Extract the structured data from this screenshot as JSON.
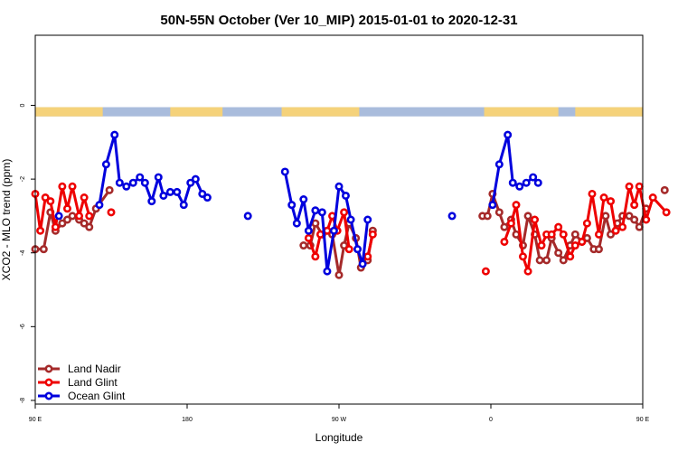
{
  "chart_data": {
    "type": "line",
    "title": "50N-55N October (Ver 10_MIP)   2015-01-01 to 2020-12-31",
    "xlabel": "Longitude",
    "ylabel": "XCO2 - MLO trend (ppm)",
    "xlim": [
      90,
      450
    ],
    "ylim": [
      -8.1,
      1.9
    ],
    "x_ticks": [
      {
        "value": 90,
        "label": "90 E"
      },
      {
        "value": 180,
        "label": "180"
      },
      {
        "value": 270,
        "label": "90 W"
      },
      {
        "value": 360,
        "label": "0"
      },
      {
        "value": 450,
        "label": "90 E"
      },
      {
        "value": 540,
        "label": "180"
      }
    ],
    "y_ticks": [
      {
        "value": 0,
        "label": "0"
      },
      {
        "value": -2,
        "label": "-2"
      },
      {
        "value": -4,
        "label": "-4"
      },
      {
        "value": -6,
        "label": "-6"
      },
      {
        "value": -8,
        "label": "-8"
      }
    ],
    "grid": false,
    "legend_position": "bottom-left",
    "land_ocean_band": {
      "y_top": -0.05,
      "y_bottom": -0.3,
      "land_color": "#f5d27a",
      "ocean_color": "#a9bcdc"
    },
    "series": [
      {
        "name": "Land Nadir",
        "color": "#a52a2a",
        "points": [
          [
            90,
            -3.9
          ],
          [
            95,
            -3.9
          ],
          [
            99,
            -2.9
          ],
          [
            102,
            -3.4
          ],
          [
            106,
            -3.2
          ],
          [
            109,
            -3.1
          ],
          [
            112,
            -3
          ],
          [
            116,
            -3.1
          ],
          [
            119,
            -3.2
          ],
          [
            122,
            -3.3
          ],
          [
            126,
            -2.8
          ],
          [
            134,
            -2.3
          ],
          [
            249,
            -3.8
          ],
          [
            253,
            -3.8
          ],
          [
            256,
            -3.2
          ],
          [
            260,
            -3.5
          ],
          [
            263,
            -3.4
          ],
          [
            266,
            -3.5
          ],
          [
            270,
            -4.6
          ],
          [
            273,
            -3.8
          ],
          [
            276,
            -3.2
          ],
          [
            280,
            -3.6
          ],
          [
            283,
            -4.4
          ],
          [
            287,
            -4.2
          ],
          [
            290,
            -3.4
          ],
          [
            355,
            -3
          ],
          [
            358,
            -3
          ],
          [
            361,
            -2.4
          ],
          [
            365,
            -2.9
          ],
          [
            368,
            -3.3
          ],
          [
            372,
            -3.1
          ],
          [
            375,
            -3.5
          ],
          [
            379,
            -3.8
          ],
          [
            382,
            -3
          ],
          [
            386,
            -3.5
          ],
          [
            389,
            -4.2
          ],
          [
            393,
            -4.2
          ],
          [
            396,
            -3.6
          ],
          [
            400,
            -4
          ],
          [
            403,
            -4.2
          ],
          [
            407,
            -3.8
          ],
          [
            410,
            -3.5
          ],
          [
            414,
            -3.7
          ],
          [
            417,
            -3.6
          ],
          [
            421,
            -3.9
          ],
          [
            424,
            -3.9
          ],
          [
            428,
            -3
          ],
          [
            431,
            -3.5
          ],
          [
            435,
            -3.2
          ],
          [
            438,
            -3
          ],
          [
            442,
            -3
          ],
          [
            445,
            -3.1
          ],
          [
            448,
            -3.3
          ],
          [
            452,
            -2.8
          ],
          [
            463,
            -2.3
          ]
        ]
      },
      {
        "name": "Land Glint",
        "color": "#ee0000",
        "points": [
          [
            90,
            -2.4
          ],
          [
            93,
            -3.4
          ],
          [
            96,
            -2.5
          ],
          [
            99,
            -2.6
          ],
          [
            102,
            -3.3
          ],
          [
            106,
            -2.2
          ],
          [
            109,
            -2.8
          ],
          [
            112,
            -2.2
          ],
          [
            116,
            -3
          ],
          [
            119,
            -2.5
          ],
          [
            122,
            -3
          ],
          [
            135,
            -2.9
          ],
          [
            252,
            -3.6
          ],
          [
            256,
            -4.1
          ],
          [
            259,
            -3.5
          ],
          [
            263,
            -3.4
          ],
          [
            266,
            -3
          ],
          [
            269,
            -3.4
          ],
          [
            273,
            -2.9
          ],
          [
            276,
            -3.9
          ],
          [
            287,
            -4.1
          ],
          [
            290,
            -3.5
          ],
          [
            357,
            -4.5
          ],
          [
            368,
            -3.7
          ],
          [
            372,
            -3.2
          ],
          [
            375,
            -2.7
          ],
          [
            379,
            -4.1
          ],
          [
            382,
            -4.5
          ],
          [
            386,
            -3.1
          ],
          [
            390,
            -3.8
          ],
          [
            393,
            -3.5
          ],
          [
            396,
            -3.5
          ],
          [
            400,
            -3.3
          ],
          [
            403,
            -3.5
          ],
          [
            407,
            -4.1
          ],
          [
            410,
            -3.8
          ],
          [
            414,
            -3.7
          ],
          [
            417,
            -3.2
          ],
          [
            420,
            -2.4
          ],
          [
            424,
            -3.5
          ],
          [
            427,
            -2.5
          ],
          [
            431,
            -2.6
          ],
          [
            434,
            -3.4
          ],
          [
            438,
            -3.3
          ],
          [
            442,
            -2.2
          ],
          [
            445,
            -2.7
          ],
          [
            448,
            -2.2
          ],
          [
            452,
            -3.1
          ],
          [
            456,
            -2.5
          ],
          [
            464,
            -2.9
          ]
        ]
      },
      {
        "name": "Ocean Glint",
        "color": "#0000dd",
        "points": [
          [
            104,
            -3
          ],
          [
            128,
            -2.7
          ],
          [
            132,
            -1.6
          ],
          [
            137,
            -0.8
          ],
          [
            140,
            -2.1
          ],
          [
            144,
            -2.2
          ],
          [
            148,
            -2.1
          ],
          [
            152,
            -1.95
          ],
          [
            155,
            -2.1
          ],
          [
            159,
            -2.6
          ],
          [
            163,
            -1.95
          ],
          [
            166,
            -2.45
          ],
          [
            170,
            -2.35
          ],
          [
            174,
            -2.35
          ],
          [
            178,
            -2.7
          ],
          [
            182,
            -2.1
          ],
          [
            185,
            -2
          ],
          [
            189,
            -2.4
          ],
          [
            192,
            -2.5
          ],
          [
            216,
            -3
          ],
          [
            238,
            -1.8
          ],
          [
            242,
            -2.7
          ],
          [
            245,
            -3.2
          ],
          [
            249,
            -2.55
          ],
          [
            252,
            -3.4
          ],
          [
            256,
            -2.85
          ],
          [
            260,
            -2.9
          ],
          [
            263,
            -4.5
          ],
          [
            267,
            -3.4
          ],
          [
            270,
            -2.2
          ],
          [
            274,
            -2.45
          ],
          [
            277,
            -3.1
          ],
          [
            281,
            -3.9
          ],
          [
            284,
            -4.3
          ],
          [
            287,
            -3.1
          ],
          [
            337,
            -3
          ],
          [
            361,
            -2.7
          ],
          [
            365,
            -1.6
          ],
          [
            370,
            -0.8
          ],
          [
            373,
            -2.1
          ],
          [
            377,
            -2.2
          ],
          [
            381,
            -2.1
          ],
          [
            385,
            -1.95
          ],
          [
            388,
            -2.1
          ]
        ]
      }
    ]
  }
}
